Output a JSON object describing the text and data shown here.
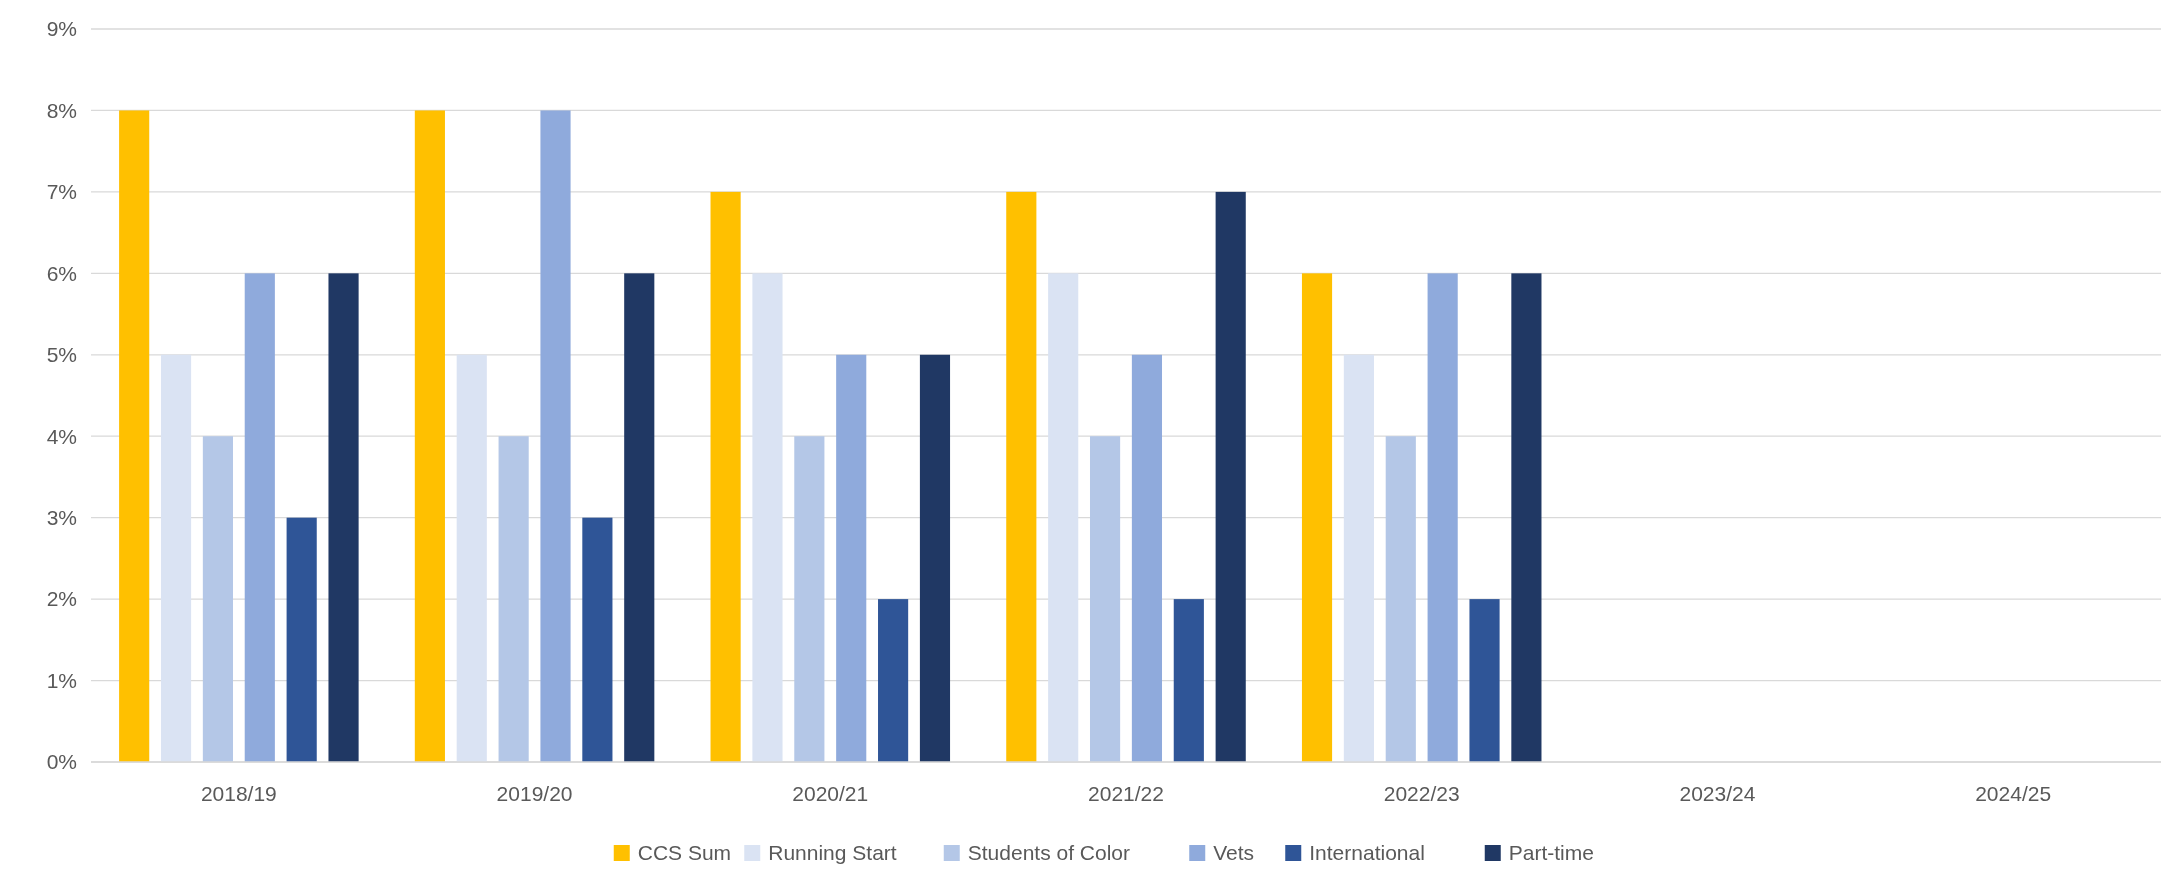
{
  "chart_data": {
    "type": "bar",
    "categories": [
      "2018/19",
      "2019/20",
      "2020/21",
      "2021/22",
      "2022/23",
      "2023/24",
      "2024/25"
    ],
    "series": [
      {
        "name": "CCS Sum",
        "color": "#ffc000",
        "values": [
          8,
          8,
          7,
          7,
          6,
          null,
          null
        ]
      },
      {
        "name": "Running Start",
        "color": "#dae3f3",
        "values": [
          5,
          5,
          6,
          6,
          5,
          null,
          null
        ]
      },
      {
        "name": "Students of Color",
        "color": "#b4c7e7",
        "values": [
          4,
          4,
          4,
          4,
          4,
          null,
          null
        ]
      },
      {
        "name": "Vets",
        "color": "#8faadc",
        "values": [
          6,
          8,
          5,
          5,
          6,
          null,
          null
        ]
      },
      {
        "name": "International",
        "color": "#2f5597",
        "values": [
          3,
          3,
          2,
          2,
          2,
          null,
          null
        ]
      },
      {
        "name": "Part-time",
        "color": "#203864",
        "values": [
          6,
          6,
          5,
          7,
          6,
          null,
          null
        ]
      }
    ],
    "ylim": [
      0,
      9
    ],
    "yticks": [
      {
        "value": 0,
        "label": "0%"
      },
      {
        "value": 1,
        "label": "1%"
      },
      {
        "value": 2,
        "label": "2%"
      },
      {
        "value": 3,
        "label": "3%"
      },
      {
        "value": 4,
        "label": "4%"
      },
      {
        "value": 5,
        "label": "5%"
      },
      {
        "value": 6,
        "label": "6%"
      },
      {
        "value": 7,
        "label": "7%"
      },
      {
        "value": 8,
        "label": "8%"
      },
      {
        "value": 9,
        "label": "9%"
      }
    ],
    "grid": "y",
    "legend": "bottom"
  }
}
